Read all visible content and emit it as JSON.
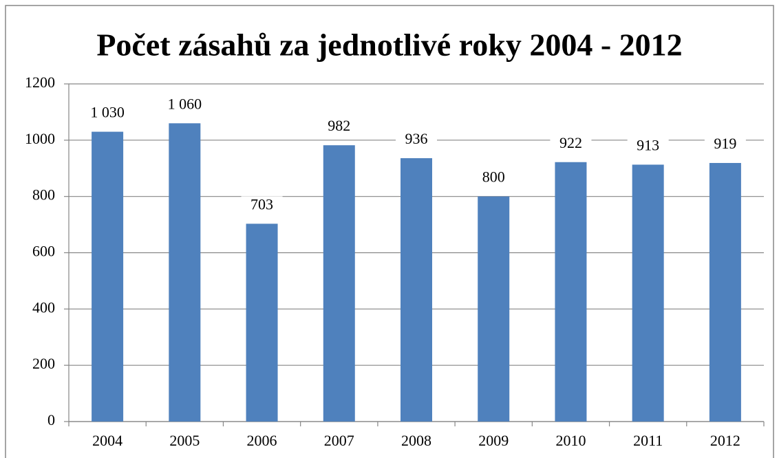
{
  "chart_data": {
    "type": "bar",
    "title": "Počet zásahů za jednotlivé roky 2004 - 2012",
    "categories": [
      "2004",
      "2005",
      "2006",
      "2007",
      "2008",
      "2009",
      "2010",
      "2011",
      "2012"
    ],
    "values": [
      1030,
      1060,
      703,
      982,
      936,
      800,
      922,
      913,
      919
    ],
    "value_labels": [
      "1 030",
      "1 060",
      "703",
      "982",
      "936",
      "800",
      "922",
      "913",
      "919"
    ],
    "color": "#4f81bd",
    "ylim": [
      0,
      1200
    ],
    "yticks": [
      0,
      200,
      400,
      600,
      800,
      1000,
      1200
    ],
    "grid": true
  }
}
